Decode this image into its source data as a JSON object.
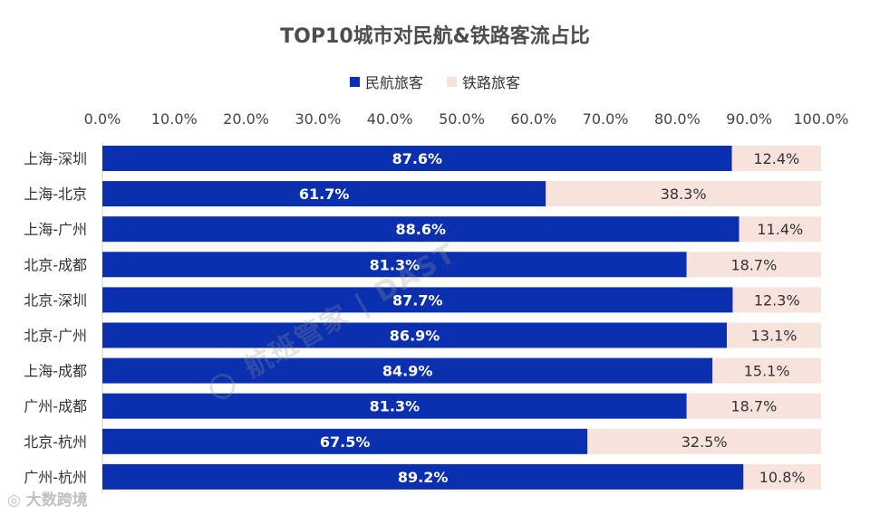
{
  "chart_data": {
    "type": "bar",
    "orientation": "horizontal",
    "stacked": true,
    "title": "TOP10城市对民航&铁路客流占比",
    "categories": [
      "上海-深圳",
      "上海-北京",
      "上海-广州",
      "北京-成都",
      "北京-深圳",
      "北京-广州",
      "上海-成都",
      "广州-成都",
      "北京-杭州",
      "广州-杭州"
    ],
    "series": [
      {
        "name": "民航旅客",
        "color": "#0a2faf",
        "label_color": "#ffffff",
        "values": [
          87.6,
          61.7,
          88.6,
          81.3,
          87.7,
          86.9,
          84.9,
          81.3,
          67.5,
          89.2
        ],
        "labels": [
          "87.6%",
          "61.7%",
          "88.6%",
          "81.3%",
          "87.7%",
          "86.9%",
          "84.9%",
          "81.3%",
          "67.5%",
          "89.2%"
        ]
      },
      {
        "name": "铁路旅客",
        "color": "#f8e2dc",
        "label_color": "#333333",
        "values": [
          12.4,
          38.3,
          11.4,
          18.7,
          12.3,
          13.1,
          15.1,
          18.7,
          32.5,
          10.8
        ],
        "labels": [
          "12.4%",
          "38.3%",
          "11.4%",
          "18.7%",
          "12.3%",
          "13.1%",
          "15.1%",
          "18.7%",
          "32.5%",
          "10.8%"
        ]
      }
    ],
    "x_ticks": [
      "0.0%",
      "10.0%",
      "20.0%",
      "30.0%",
      "40.0%",
      "50.0%",
      "60.0%",
      "70.0%",
      "80.0%",
      "90.0%",
      "100.0%"
    ],
    "xlim": [
      0,
      100
    ],
    "xaxis_position": "top",
    "legend_position": "top",
    "grid": false
  },
  "watermark": {
    "text": "航班管家 | DAST"
  },
  "brand": {
    "text": "大数跨境"
  }
}
